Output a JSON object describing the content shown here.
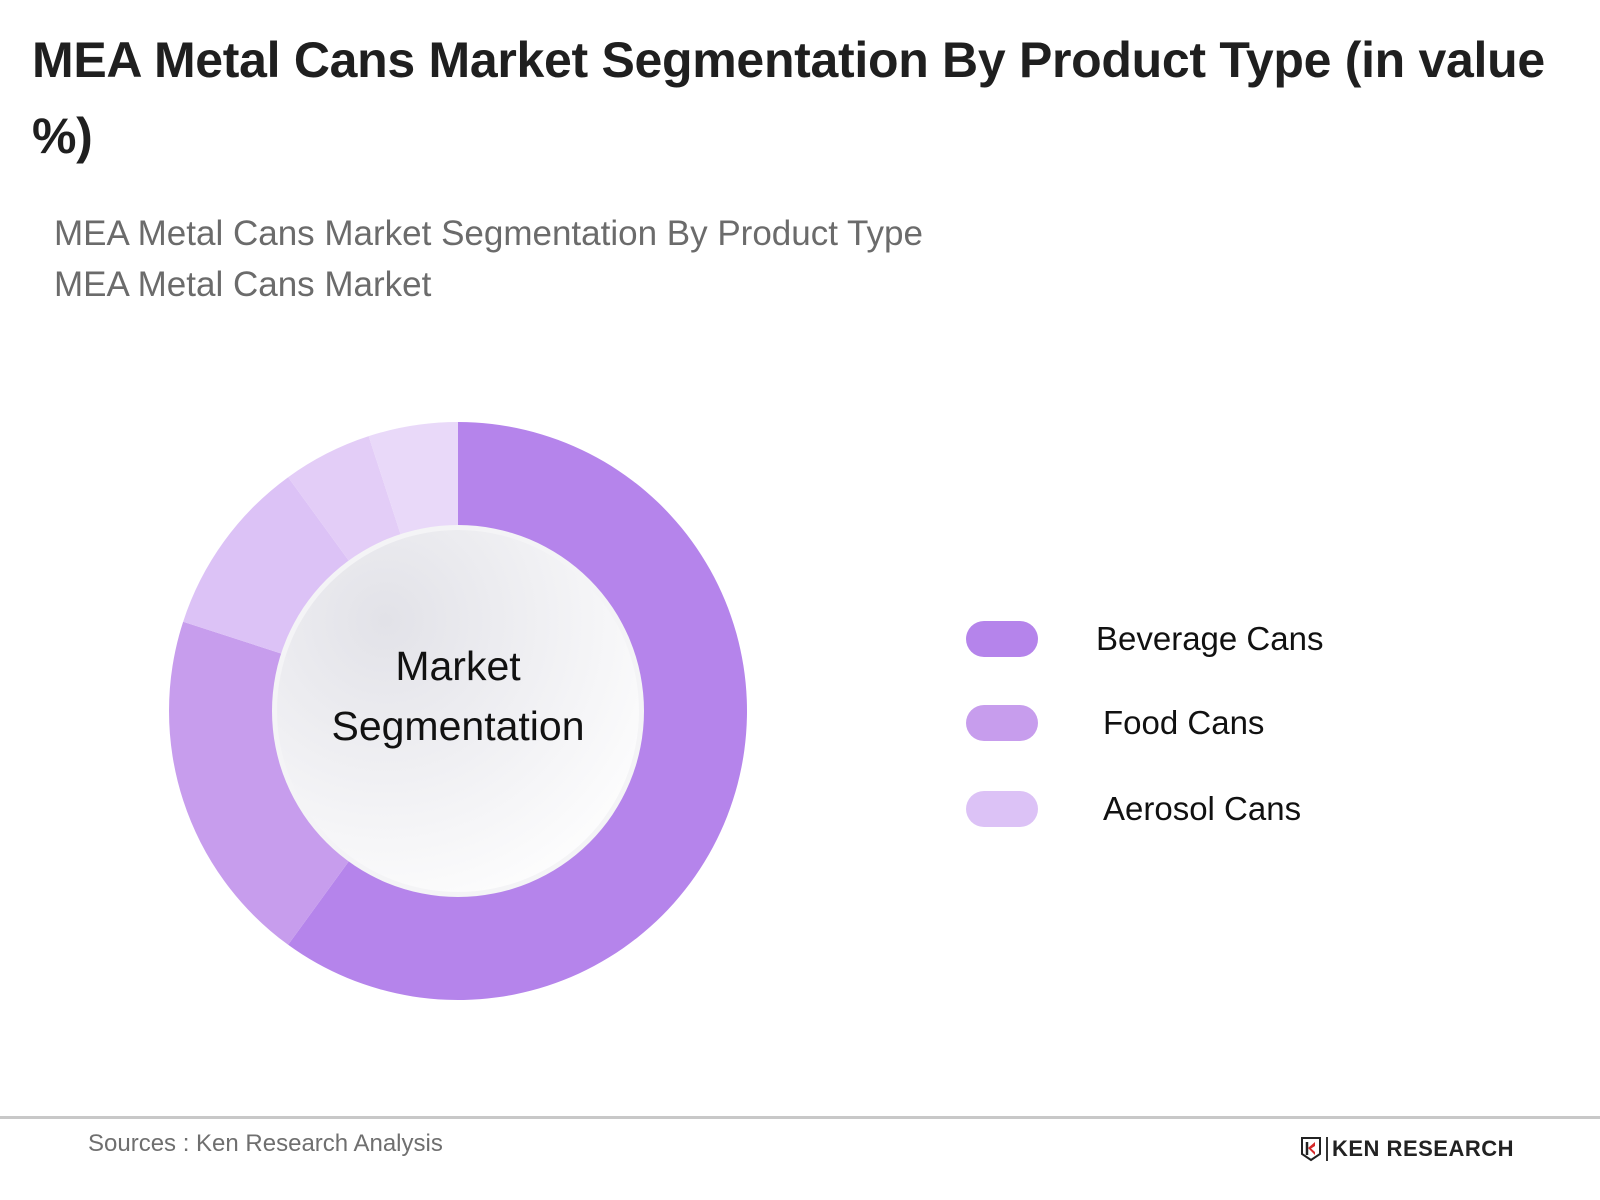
{
  "title": "MEA Metal Cans Market Segmentation By Product Type (in value %)",
  "subtitle": {
    "line1": "MEA Metal Cans Market Segmentation By Product Type",
    "line2": "MEA Metal Cans Market"
  },
  "center_label": {
    "line1": "Market",
    "line2": "Segmentation"
  },
  "legend": [
    {
      "label": "Beverage Cans",
      "color": "#b584eb"
    },
    {
      "label": "Food Cans",
      "color": "#c79ded"
    },
    {
      "label": "Aerosol Cans",
      "color": "#dcc2f6"
    }
  ],
  "footer": {
    "source": "Sources : Ken Research Analysis",
    "brand": "KEN RESEARCH"
  },
  "chart_data": {
    "type": "pie",
    "variant": "donut",
    "title": "MEA Metal Cans Market Segmentation By Product Type (in value %)",
    "subtitle": "MEA Metal Cans Market Segmentation By Product Type / MEA Metal Cans Market",
    "center_text": "Market Segmentation",
    "categories": [
      "Beverage Cans",
      "Food Cans",
      "Aerosol Cans",
      "Aerosol Cans",
      "Aerosol Cans"
    ],
    "values": [
      60,
      20,
      10,
      5,
      5
    ],
    "colors": [
      "#b584eb",
      "#c79ded",
      "#dcc2f6",
      "#e3cdf7",
      "#e9d9f9"
    ],
    "legend_entries": [
      "Beverage Cans",
      "Food Cans",
      "Aerosol Cans"
    ],
    "legend_position": "right",
    "note": "No numeric data labels shown; values estimated from slice angles (approx. %)."
  }
}
